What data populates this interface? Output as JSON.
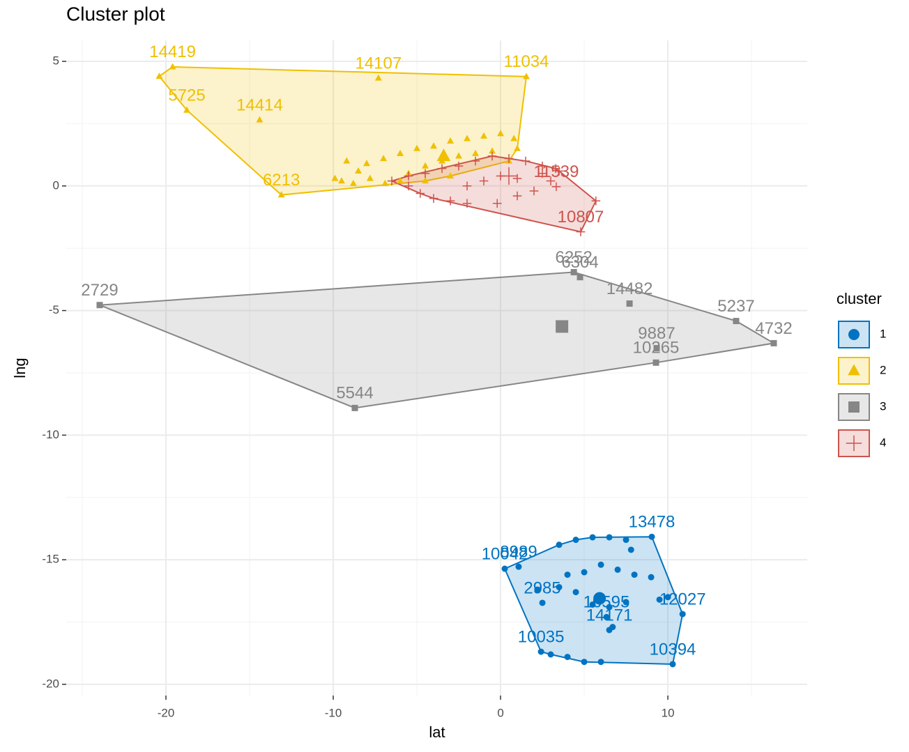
{
  "chart_data": {
    "type": "scatter",
    "title": "Cluster plot",
    "x_label": "lat",
    "y_label": "lng",
    "xlim": [
      -25.96,
      18.33
    ],
    "ylim": [
      -20.45,
      5.84
    ],
    "xticks": [
      -20,
      -10,
      0,
      10
    ],
    "yticks": [
      5,
      0,
      -5,
      -10,
      -15,
      -20
    ],
    "xminor": [
      -25,
      -15,
      -5,
      5,
      15
    ],
    "yminor": [
      2.5,
      -2.5,
      -7.5,
      -12.5,
      -17.5
    ],
    "grid": true,
    "legend_title": "cluster",
    "legend_position": "right",
    "series": [
      {
        "name": "1",
        "color": "#0073C2",
        "shape": "circle",
        "center": [
          5.92,
          -16.55
        ],
        "x": [
          9.04,
          0.25,
          1.08,
          2.5,
          10.88,
          10.29,
          6.5,
          6.33,
          2.42,
          3.5,
          4.5,
          5.5,
          6.5,
          7.5,
          4,
          5,
          6,
          7,
          8,
          9,
          3.5,
          4.5,
          5.5,
          6.5,
          7.5,
          9.5,
          4,
          5,
          6,
          3,
          2.2,
          7.8,
          6.7,
          10
        ],
        "y": [
          -14.08,
          -15.36,
          -15.28,
          -16.73,
          -17.18,
          -19.19,
          -17.82,
          -17.3,
          -18.69,
          -14.4,
          -14.2,
          -14.1,
          -14.1,
          -14.2,
          -15.6,
          -15.5,
          -15.2,
          -15.4,
          -15.6,
          -15.7,
          -16.1,
          -16.3,
          -16.8,
          -16.9,
          -16.7,
          -16.6,
          -18.9,
          -19.1,
          -19.1,
          -18.8,
          -16.2,
          -14.6,
          -17.7,
          -16.5
        ],
        "labels": [
          "13478",
          "10042",
          "8989",
          "2985",
          "12027",
          "10394",
          "14171",
          "10595",
          "10035",
          null,
          null,
          null,
          null,
          null,
          null,
          null,
          null,
          null,
          null,
          null,
          null,
          null,
          null,
          null,
          null,
          null,
          null,
          null,
          null,
          null,
          null,
          null,
          null,
          null
        ]
      },
      {
        "name": "2",
        "color": "#EFC000",
        "shape": "triangle",
        "center": [
          -3.4,
          1.2
        ],
        "x": [
          -19.6,
          -7.3,
          1.54,
          -18.75,
          -14.4,
          -13.1,
          -20.4,
          -9.9,
          -9.5,
          -8.8,
          -7.8,
          -6.9,
          -6,
          -9.2,
          -8,
          -7,
          -6,
          -5,
          -4,
          -3,
          -2,
          -1,
          0,
          0.8,
          1,
          -4.5,
          -3.5,
          -2.5,
          -1.5,
          -0.5,
          0.5,
          -8.5,
          -5.5,
          -3,
          -4.5
        ],
        "y": [
          4.78,
          4.33,
          4.39,
          3.04,
          2.65,
          -0.36,
          4.4,
          0.3,
          0.2,
          0.1,
          0.3,
          0.1,
          0.2,
          1.0,
          0.9,
          1.1,
          1.3,
          1.5,
          1.6,
          1.8,
          1.9,
          2.0,
          2.1,
          1.9,
          1.5,
          0.8,
          1.0,
          1.2,
          1.3,
          1.4,
          1.0,
          0.6,
          0.5,
          0.4,
          0.2
        ],
        "labels": [
          "14419",
          "14107",
          "11034",
          "5725",
          "14414",
          "6213",
          null,
          null,
          null,
          null,
          null,
          null,
          null,
          null,
          null,
          null,
          null,
          null,
          null,
          null,
          null,
          null,
          null,
          null,
          null,
          null,
          null,
          null,
          null,
          null,
          null,
          null,
          null,
          null,
          null
        ]
      },
      {
        "name": "3",
        "color": "#868686",
        "shape": "square",
        "center": [
          3.67,
          -5.64
        ],
        "x": [
          -23.96,
          4.38,
          4.75,
          7.71,
          14.08,
          16.33,
          9.33,
          9.29,
          -8.71
        ],
        "y": [
          -4.78,
          -3.46,
          -3.66,
          -4.72,
          -5.42,
          -6.31,
          -6.51,
          -7.09,
          -8.91
        ],
        "labels": [
          "2729",
          "6252",
          "6304",
          "14482",
          "5237",
          "4732",
          "9887",
          "10265",
          "5544"
        ]
      },
      {
        "name": "4",
        "color": "#CD534C",
        "shape": "cross",
        "center": [
          0.5,
          0.4
        ],
        "x": [
          3.33,
          4.79,
          5.7,
          -6.5,
          -5.5,
          -4.8,
          -4,
          -3,
          -2,
          -0.2,
          1,
          2,
          3,
          3.5,
          2.5,
          1.5,
          0.5,
          -0.5,
          -1.5,
          -2.5,
          -3.5,
          -4.5,
          -1,
          0,
          1,
          -2,
          2.5,
          -5.5,
          3.3
        ],
        "y": [
          -0.03,
          -1.84,
          -0.6,
          0.2,
          0,
          -0.3,
          -0.5,
          -0.6,
          -0.7,
          -0.7,
          -0.4,
          -0.2,
          0.2,
          0.6,
          0.8,
          1.0,
          1.1,
          1.2,
          1.0,
          0.8,
          0.7,
          0.5,
          0.2,
          0.4,
          0.3,
          0,
          0.5,
          0.4,
          0.7
        ],
        "labels": [
          "11539",
          "10807",
          null,
          null,
          null,
          null,
          null,
          null,
          null,
          null,
          null,
          null,
          null,
          null,
          null,
          null,
          null,
          null,
          null,
          null,
          null,
          null,
          null,
          null,
          null,
          null,
          null,
          null,
          null
        ]
      }
    ]
  }
}
